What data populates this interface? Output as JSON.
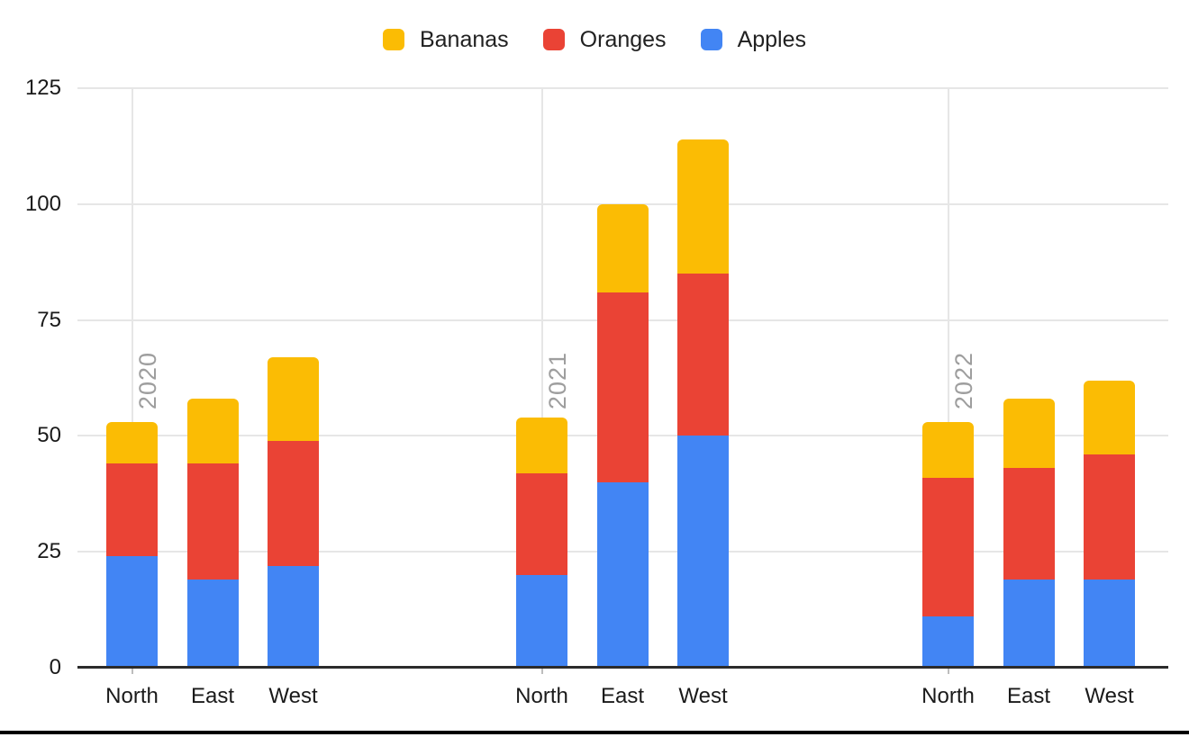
{
  "chart_data": {
    "type": "bar",
    "stacked": true,
    "title": "",
    "xlabel": "",
    "ylabel": "",
    "background": "#ffffff",
    "group_labels": [
      "2020",
      "2021",
      "2022"
    ],
    "categories": [
      "North",
      "East",
      "West"
    ],
    "series": [
      {
        "name": "Apples",
        "color": "#4285F4",
        "values_by_group": [
          [
            24,
            19,
            22
          ],
          [
            20,
            40,
            50
          ],
          [
            11,
            19,
            19
          ]
        ]
      },
      {
        "name": "Oranges",
        "color": "#EA4335",
        "values_by_group": [
          [
            20,
            25,
            27
          ],
          [
            22,
            41,
            35
          ],
          [
            30,
            24,
            27
          ]
        ]
      },
      {
        "name": "Bananas",
        "color": "#FBBC04",
        "values_by_group": [
          [
            9,
            14,
            18
          ],
          [
            12,
            19,
            29
          ],
          [
            12,
            15,
            16
          ]
        ]
      }
    ],
    "stack_order_bottom_to_top": [
      "Apples",
      "Oranges",
      "Bananas"
    ],
    "bar_totals_by_group": [
      [
        53,
        58,
        67
      ],
      [
        54,
        100,
        114
      ],
      [
        53,
        58,
        62
      ]
    ],
    "legend": {
      "position": "top",
      "entries": [
        {
          "label": "Bananas",
          "color": "#FBBC04"
        },
        {
          "label": "Oranges",
          "color": "#EA4335"
        },
        {
          "label": "Apples",
          "color": "#4285F4"
        }
      ]
    },
    "y_ticks": [
      "0",
      "25",
      "50",
      "75",
      "100",
      "125"
    ],
    "ylim": [
      0,
      125
    ],
    "grid": {
      "horizontal": true,
      "vertical_at_year_ticks": true
    },
    "colors": {
      "gridline": "#e6e6e6",
      "axis_line": "#2b2b2b",
      "tick_mark": "#bdbdbd",
      "year_label_text": "#9e9e9e",
      "axis_label_text": "#1a1a1a",
      "legend_text": "#212121",
      "window_border": "#000000"
    }
  }
}
